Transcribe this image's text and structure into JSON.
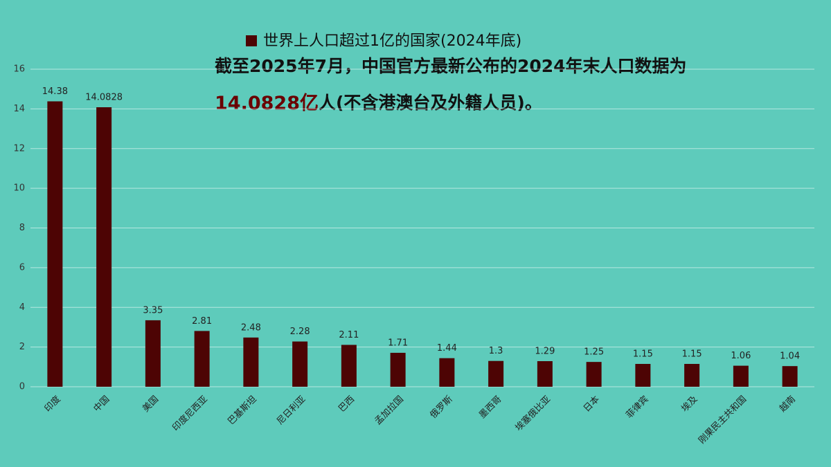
{
  "chart_data": {
    "type": "bar",
    "legend": "世界上人口超过1亿的国家(2024年底)",
    "annotations": [
      "截至2025年7月，中国官方最新公布的2024年末人口数据为",
      "14.0828亿",
      "人(不含港澳台及外籍人员)。"
    ],
    "categories": [
      "印度",
      "中国",
      "美国",
      "印度尼西亚",
      "巴基斯坦",
      "尼日利亚",
      "巴西",
      "孟加拉国",
      "俄罗斯",
      "墨西哥",
      "埃塞俄比亚",
      "日本",
      "菲律宾",
      "埃及",
      "刚果民主共和国",
      "越南"
    ],
    "values": [
      14.38,
      14.0828,
      3.35,
      2.81,
      2.48,
      2.28,
      2.11,
      1.71,
      1.44,
      1.3,
      1.29,
      1.25,
      1.15,
      1.15,
      1.06,
      1.04
    ],
    "color": "#4d0404",
    "ylim": [
      0,
      16
    ],
    "yticks": [
      0,
      2,
      4,
      6,
      8,
      10,
      12,
      14,
      16
    ],
    "grid": true
  }
}
